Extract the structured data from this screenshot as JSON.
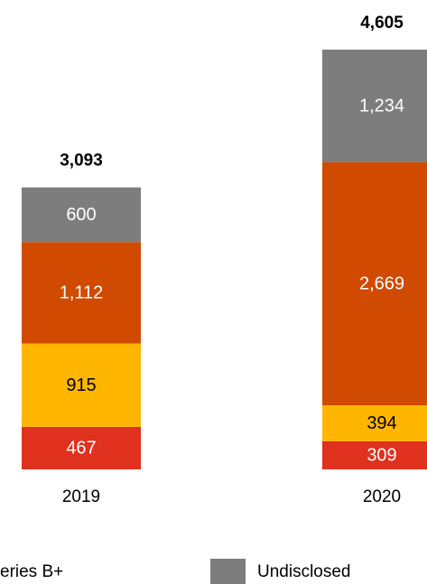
{
  "chart_data": {
    "type": "stacked-bar",
    "categories": [
      "2019",
      "2020"
    ],
    "series": [
      {
        "color": "#e0301e",
        "label_color": "#ffffff",
        "values": [
          467,
          309
        ],
        "value_labels": [
          "467",
          "309"
        ]
      },
      {
        "color": "#ffb600",
        "label_color": "#000000",
        "values": [
          915,
          394
        ],
        "value_labels": [
          "915",
          "394"
        ]
      },
      {
        "name": "eries B+",
        "color": "#d04a02",
        "label_color": "#ffffff",
        "values": [
          1112,
          2669
        ],
        "value_labels": [
          "1,112",
          "2,669"
        ]
      },
      {
        "name": "Undisclosed",
        "color": "#7d7d7d",
        "label_color": "#ffffff",
        "values": [
          600,
          1234
        ],
        "value_labels": [
          "600",
          "1,234"
        ]
      }
    ],
    "totals": [
      3093,
      4605
    ],
    "total_labels": [
      "3,093",
      "4,605"
    ]
  }
}
